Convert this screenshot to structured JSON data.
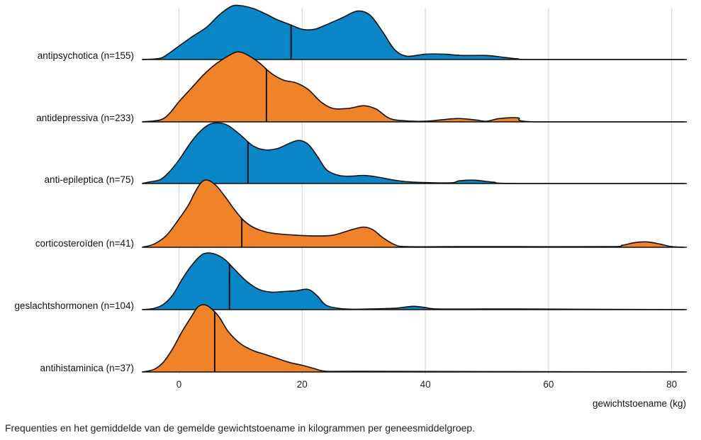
{
  "chart_data": {
    "type": "ridgeline",
    "xlabel": "gewichtstoename (kg)",
    "xlim": [
      -6,
      82
    ],
    "xticks": [
      0,
      20,
      40,
      60,
      80
    ],
    "grid": true,
    "caption": "Frequenties en het gemiddelde van de gemelde gewichtstoename in kilogrammen per geneesmiddelgroep.",
    "colors": {
      "blue": "#0a86c6",
      "orange": "#f08229"
    },
    "series": [
      {
        "name": "antipsychotica (n=155)",
        "color": "blue",
        "mean": 18.2,
        "density": [
          [
            -6,
            0
          ],
          [
            -3,
            0.02
          ],
          [
            -1.5,
            0.1
          ],
          [
            0,
            0.2
          ],
          [
            2,
            0.33
          ],
          [
            4.5,
            0.48
          ],
          [
            6.5,
            0.66
          ],
          [
            8.5,
            0.79
          ],
          [
            10,
            0.8
          ],
          [
            12,
            0.76
          ],
          [
            14,
            0.68
          ],
          [
            16,
            0.59
          ],
          [
            18,
            0.52
          ],
          [
            20,
            0.45
          ],
          [
            22,
            0.45
          ],
          [
            24,
            0.52
          ],
          [
            26.5,
            0.62
          ],
          [
            29,
            0.72
          ],
          [
            31,
            0.66
          ],
          [
            33,
            0.42
          ],
          [
            35,
            0.15
          ],
          [
            37,
            0.05
          ],
          [
            40,
            0.08
          ],
          [
            43,
            0.08
          ],
          [
            46,
            0.06
          ],
          [
            50,
            0.06
          ],
          [
            53,
            0.03
          ],
          [
            55,
            0.01
          ],
          [
            58,
            0
          ],
          [
            82,
            0
          ]
        ]
      },
      {
        "name": "antidepressiva (n=233)",
        "color": "orange",
        "mean": 14.2,
        "density": [
          [
            -6,
            0
          ],
          [
            -3,
            0.03
          ],
          [
            -1.5,
            0.13
          ],
          [
            0,
            0.3
          ],
          [
            2,
            0.5
          ],
          [
            4,
            0.7
          ],
          [
            6,
            0.86
          ],
          [
            8,
            0.98
          ],
          [
            9.5,
            1.04
          ],
          [
            11,
            1.0
          ],
          [
            13,
            0.88
          ],
          [
            15,
            0.72
          ],
          [
            17,
            0.62
          ],
          [
            19,
            0.58
          ],
          [
            21,
            0.48
          ],
          [
            23,
            0.3
          ],
          [
            25,
            0.2
          ],
          [
            27.5,
            0.2
          ],
          [
            30,
            0.24
          ],
          [
            32,
            0.19
          ],
          [
            34,
            0.06
          ],
          [
            36,
            0.02
          ],
          [
            40,
            0.01
          ],
          [
            45,
            0.05
          ],
          [
            48,
            0.03
          ],
          [
            50,
            0.01
          ],
          [
            52,
            0.05
          ],
          [
            55,
            0.06
          ],
          [
            58,
            0
          ],
          [
            82,
            0
          ]
        ]
      },
      {
        "name": "anti-epileptica (n=75)",
        "color": "blue",
        "mean": 11.2,
        "density": [
          [
            -6,
            0
          ],
          [
            -5,
            0.02
          ],
          [
            -3,
            0.06
          ],
          [
            -1.5,
            0.18
          ],
          [
            0,
            0.35
          ],
          [
            2,
            0.62
          ],
          [
            3.5,
            0.78
          ],
          [
            5,
            0.88
          ],
          [
            6.5,
            0.9
          ],
          [
            8,
            0.86
          ],
          [
            10,
            0.72
          ],
          [
            12,
            0.56
          ],
          [
            14,
            0.5
          ],
          [
            16,
            0.52
          ],
          [
            18,
            0.6
          ],
          [
            19.5,
            0.64
          ],
          [
            21,
            0.58
          ],
          [
            22.5,
            0.4
          ],
          [
            24,
            0.2
          ],
          [
            26,
            0.12
          ],
          [
            28,
            0.11
          ],
          [
            30,
            0.12
          ],
          [
            32,
            0.1
          ],
          [
            35,
            0.05
          ],
          [
            38,
            0.02
          ],
          [
            44,
            0.01
          ],
          [
            45.5,
            0.04
          ],
          [
            48,
            0.05
          ],
          [
            51,
            0.02
          ],
          [
            55,
            0
          ],
          [
            82,
            0
          ]
        ]
      },
      {
        "name": "corticosteroïden (n=41)",
        "color": "orange",
        "mean": 10.2,
        "density": [
          [
            -6,
            0
          ],
          [
            -4,
            0.05
          ],
          [
            -2,
            0.18
          ],
          [
            0,
            0.42
          ],
          [
            1.5,
            0.62
          ],
          [
            2.5,
            0.8
          ],
          [
            3.5,
            0.95
          ],
          [
            4.5,
            1.0
          ],
          [
            6,
            0.92
          ],
          [
            7.5,
            0.75
          ],
          [
            9,
            0.56
          ],
          [
            10.5,
            0.4
          ],
          [
            12,
            0.3
          ],
          [
            14,
            0.23
          ],
          [
            16,
            0.2
          ],
          [
            19,
            0.18
          ],
          [
            22,
            0.17
          ],
          [
            25,
            0.18
          ],
          [
            28,
            0.26
          ],
          [
            30,
            0.3
          ],
          [
            31.5,
            0.26
          ],
          [
            33,
            0.15
          ],
          [
            35,
            0.04
          ],
          [
            37,
            0.01
          ],
          [
            45,
            0.01
          ],
          [
            55,
            0.01
          ],
          [
            70,
            0.01
          ],
          [
            72,
            0.03
          ],
          [
            74,
            0.07
          ],
          [
            76,
            0.08
          ],
          [
            78,
            0.05
          ],
          [
            80,
            0.01
          ],
          [
            82,
            0
          ]
        ]
      },
      {
        "name": "geslachtshormonen (n=104)",
        "color": "blue",
        "mean": 8.2,
        "density": [
          [
            -6,
            0
          ],
          [
            -4,
            0.02
          ],
          [
            -2.5,
            0.08
          ],
          [
            -1,
            0.22
          ],
          [
            0.5,
            0.45
          ],
          [
            2,
            0.65
          ],
          [
            3.5,
            0.8
          ],
          [
            4.5,
            0.84
          ],
          [
            6,
            0.82
          ],
          [
            7.5,
            0.74
          ],
          [
            9,
            0.6
          ],
          [
            11,
            0.42
          ],
          [
            13,
            0.3
          ],
          [
            15,
            0.26
          ],
          [
            17,
            0.27
          ],
          [
            19,
            0.28
          ],
          [
            21,
            0.3
          ],
          [
            22.5,
            0.2
          ],
          [
            24,
            0.06
          ],
          [
            27,
            0.01
          ],
          [
            31,
            0.01
          ],
          [
            35,
            0.02
          ],
          [
            38,
            0.05
          ],
          [
            40,
            0.03
          ],
          [
            42,
            0.01
          ],
          [
            50,
            0.01
          ],
          [
            55,
            0.01
          ],
          [
            82,
            0
          ]
        ]
      },
      {
        "name": "antihistaminica (n=37)",
        "color": "orange",
        "mean": 5.8,
        "density": [
          [
            -6,
            0
          ],
          [
            -4,
            0.04
          ],
          [
            -2.5,
            0.15
          ],
          [
            -1,
            0.35
          ],
          [
            0.5,
            0.6
          ],
          [
            2,
            0.82
          ],
          [
            3,
            0.96
          ],
          [
            4,
            1.0
          ],
          [
            5,
            0.96
          ],
          [
            6.5,
            0.82
          ],
          [
            8,
            0.6
          ],
          [
            10,
            0.42
          ],
          [
            12,
            0.32
          ],
          [
            14,
            0.26
          ],
          [
            16,
            0.2
          ],
          [
            18,
            0.14
          ],
          [
            20,
            0.1
          ],
          [
            22,
            0.05
          ],
          [
            24,
            0.01
          ],
          [
            30,
            0.01
          ],
          [
            82,
            0
          ]
        ]
      }
    ]
  }
}
